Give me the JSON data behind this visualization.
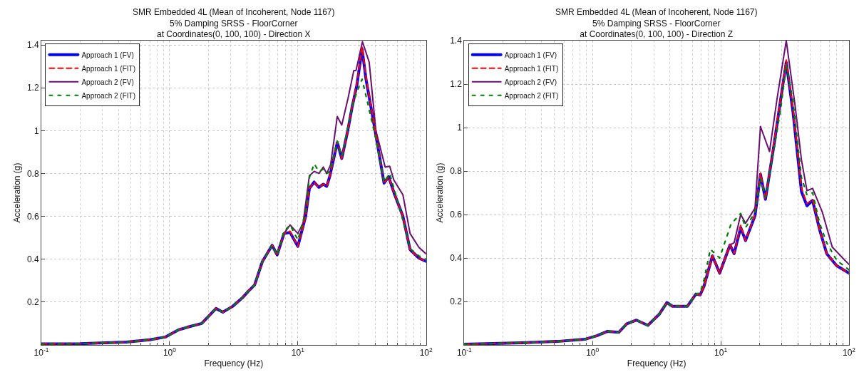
{
  "chart_data": [
    {
      "type": "line",
      "title": "SMR Embedded 4L (Mean of Incoherent, Node 1167)\n5% Damping SRSS - FloorCorner\nat Coordinates(0, 100, 100) - Direction X",
      "xlabel": "Frequency (Hz)",
      "ylabel": "Acceleration (g)",
      "log": "x",
      "grid": true,
      "legend": "top left",
      "xlim": [
        0.1,
        100
      ],
      "xticks": [
        {
          "value": 0.1,
          "label": "10$^{-1}$"
        },
        {
          "value": 1,
          "label": "10$^{0}$"
        },
        {
          "value": 10,
          "label": "10$^{1}$"
        },
        {
          "value": 100,
          "label": "10$^{2}$"
        }
      ],
      "ylim": [
        0,
        1.42
      ],
      "yticks": [
        0.2,
        0.4,
        0.6,
        0.8,
        1,
        1.2,
        1.4
      ],
      "series": [
        {
          "name": "Approach 1 (FV)",
          "color": "#0000ff",
          "line_style": "solid",
          "x": [
            0.1,
            0.2,
            0.46,
            0.7,
            0.93,
            1.17,
            1.38,
            1.78,
            2.3,
            2.6,
            3.1,
            3.7,
            4.1,
            4.6,
            5.3,
            6.3,
            6.9,
            7.8,
            8.7,
            10,
            11.5,
            12.3,
            13.4,
            14.6,
            15.8,
            16.8,
            17.8,
            20.3,
            22,
            24.5,
            26.5,
            28.8,
            31.7,
            34,
            40.6,
            47,
            51,
            57,
            66,
            75,
            88,
            100
          ],
          "values": [
            0.005,
            0.006,
            0.013,
            0.024,
            0.037,
            0.07,
            0.083,
            0.1,
            0.17,
            0.153,
            0.18,
            0.22,
            0.25,
            0.28,
            0.39,
            0.465,
            0.42,
            0.52,
            0.525,
            0.46,
            0.6,
            0.73,
            0.76,
            0.735,
            0.75,
            0.74,
            0.79,
            0.945,
            0.87,
            1.0,
            1.11,
            1.21,
            1.38,
            1.24,
            0.98,
            0.755,
            0.785,
            0.7,
            0.6,
            0.445,
            0.405,
            0.39
          ]
        },
        {
          "name": "Approach 1 (FIT)",
          "color": "#ff0000",
          "line_style": "dashed",
          "x": [
            0.1,
            0.2,
            0.46,
            0.7,
            0.93,
            1.17,
            1.38,
            1.78,
            2.3,
            2.6,
            3.1,
            3.7,
            4.1,
            4.6,
            5.3,
            6.3,
            6.9,
            7.8,
            8.7,
            10,
            11.5,
            12.3,
            13.4,
            14.6,
            15.8,
            16.8,
            17.8,
            20.3,
            22,
            24.5,
            26.5,
            28.8,
            31.7,
            34,
            40.6,
            47,
            51,
            57,
            66,
            75,
            88,
            100
          ],
          "values": [
            0.005,
            0.006,
            0.013,
            0.024,
            0.037,
            0.07,
            0.083,
            0.1,
            0.17,
            0.153,
            0.18,
            0.22,
            0.25,
            0.28,
            0.39,
            0.465,
            0.42,
            0.52,
            0.53,
            0.46,
            0.6,
            0.73,
            0.76,
            0.735,
            0.75,
            0.74,
            0.79,
            0.95,
            0.87,
            1.0,
            1.11,
            1.22,
            1.39,
            1.25,
            0.98,
            0.755,
            0.785,
            0.7,
            0.6,
            0.445,
            0.405,
            0.39
          ]
        },
        {
          "name": "Approach 2 (FV)",
          "color": "#6a0f70",
          "line_style": "solid",
          "x": [
            0.1,
            0.2,
            0.46,
            0.7,
            0.93,
            1.17,
            1.38,
            1.78,
            2.3,
            2.6,
            3.1,
            3.7,
            4.1,
            4.6,
            5.3,
            6.3,
            6.9,
            7.8,
            8.7,
            10,
            11,
            12.3,
            13.4,
            14.6,
            15.8,
            16.8,
            18,
            20.3,
            22,
            24.6,
            27.3,
            28.4,
            31.9,
            36,
            40.6,
            48,
            52,
            56,
            66,
            75,
            88,
            100
          ],
          "values": [
            0.005,
            0.006,
            0.013,
            0.024,
            0.037,
            0.07,
            0.083,
            0.1,
            0.17,
            0.153,
            0.18,
            0.22,
            0.25,
            0.28,
            0.39,
            0.465,
            0.42,
            0.52,
            0.56,
            0.52,
            0.57,
            0.79,
            0.81,
            0.8,
            0.83,
            0.8,
            0.84,
            1.066,
            1.026,
            1.15,
            1.28,
            1.28,
            1.415,
            1.32,
            1.0,
            0.83,
            0.834,
            0.77,
            0.7,
            0.52,
            0.455,
            0.425
          ]
        },
        {
          "name": "Approach 2 (FIT)",
          "color": "#008000",
          "line_style": "dashed",
          "x": [
            0.1,
            0.2,
            0.46,
            0.7,
            0.93,
            1.17,
            1.38,
            1.78,
            2.3,
            2.6,
            3.1,
            3.7,
            4.1,
            4.6,
            5.3,
            6.3,
            6.9,
            7.8,
            8.7,
            10,
            11.5,
            12.3,
            13.4,
            14.6,
            15.8,
            16.8,
            17.8,
            20.3,
            22,
            26.5,
            28.8,
            31.7,
            35,
            40.6,
            47,
            52,
            60,
            66,
            75,
            88,
            100
          ],
          "values": [
            0.005,
            0.006,
            0.013,
            0.024,
            0.037,
            0.07,
            0.083,
            0.1,
            0.17,
            0.153,
            0.18,
            0.22,
            0.25,
            0.28,
            0.39,
            0.465,
            0.42,
            0.53,
            0.56,
            0.49,
            0.62,
            0.78,
            0.845,
            0.81,
            0.82,
            0.8,
            0.81,
            0.95,
            0.88,
            1.11,
            1.18,
            1.24,
            1.13,
            0.96,
            0.76,
            0.8,
            0.67,
            0.58,
            0.45,
            0.415,
            0.4
          ]
        }
      ]
    },
    {
      "type": "line",
      "title": "SMR Embedded 4L (Mean of Incoherent, Node 1167)\n5% Damping SRSS - FloorCorner\nat Coordinates(0, 100, 100) - Direction Z",
      "xlabel": "Frequency (Hz)",
      "ylabel": "Acceleration (g)",
      "log": "x",
      "grid": true,
      "legend": "top left",
      "xlim": [
        0.1,
        100
      ],
      "xticks": [
        {
          "value": 0.1,
          "label": "10$^{-1}$"
        },
        {
          "value": 1,
          "label": "10$^{0}$"
        },
        {
          "value": 10,
          "label": "10$^{1}$"
        },
        {
          "value": 100,
          "label": "10$^{2}$"
        }
      ],
      "ylim": [
        0,
        1.4
      ],
      "yticks": [
        0.2,
        0.4,
        0.6,
        0.8,
        1,
        1.2,
        1.4
      ],
      "series": [
        {
          "name": "Approach 1 (FV)",
          "color": "#0000ff",
          "line_style": "solid",
          "x": [
            0.1,
            0.28,
            0.53,
            0.87,
            1.08,
            1.3,
            1.6,
            1.85,
            2.2,
            2.7,
            3.3,
            3.8,
            4.2,
            5.5,
            6.4,
            6.9,
            7.4,
            8.6,
            9.8,
            11.8,
            12.7,
            14.3,
            15.6,
            18.5,
            20.4,
            22.3,
            26,
            29.4,
            32.4,
            36.6,
            42.6,
            47,
            52,
            59,
            67,
            80,
            100
          ],
          "values": [
            0.003,
            0.01,
            0.016,
            0.026,
            0.042,
            0.062,
            0.058,
            0.097,
            0.114,
            0.09,
            0.14,
            0.195,
            0.178,
            0.178,
            0.234,
            0.23,
            0.27,
            0.41,
            0.33,
            0.46,
            0.42,
            0.54,
            0.48,
            0.595,
            0.785,
            0.67,
            0.92,
            1.135,
            1.3,
            1.07,
            0.705,
            0.64,
            0.665,
            0.53,
            0.42,
            0.365,
            0.33
          ]
        },
        {
          "name": "Approach 1 (FIT)",
          "color": "#ff0000",
          "line_style": "dashed",
          "x": [
            0.1,
            0.28,
            0.53,
            0.87,
            1.08,
            1.3,
            1.6,
            1.85,
            2.2,
            2.7,
            3.3,
            3.8,
            4.2,
            5.5,
            6.4,
            6.9,
            7.4,
            8.6,
            9.8,
            11.8,
            12.7,
            14.3,
            15.6,
            18.5,
            20.4,
            22.3,
            26,
            29.4,
            32.4,
            36.6,
            42.6,
            47,
            52,
            59,
            67,
            80,
            100
          ],
          "values": [
            0.003,
            0.01,
            0.016,
            0.026,
            0.042,
            0.062,
            0.058,
            0.097,
            0.114,
            0.09,
            0.14,
            0.195,
            0.178,
            0.178,
            0.234,
            0.23,
            0.27,
            0.41,
            0.33,
            0.46,
            0.42,
            0.55,
            0.48,
            0.6,
            0.79,
            0.67,
            0.93,
            1.14,
            1.31,
            1.08,
            0.72,
            0.65,
            0.67,
            0.53,
            0.42,
            0.365,
            0.33
          ]
        },
        {
          "name": "Approach 2 (FV)",
          "color": "#6a0f70",
          "line_style": "solid",
          "x": [
            0.1,
            0.28,
            0.53,
            0.87,
            1.08,
            1.3,
            1.6,
            1.85,
            2.2,
            2.7,
            3.3,
            3.8,
            4.2,
            5.5,
            6.4,
            6.9,
            7.4,
            8.6,
            9.8,
            11.8,
            12.7,
            14.3,
            15.6,
            18.5,
            20.4,
            24,
            27.5,
            32.4,
            38,
            42.6,
            47,
            52,
            62,
            74,
            100
          ],
          "values": [
            0.003,
            0.01,
            0.016,
            0.026,
            0.042,
            0.062,
            0.058,
            0.097,
            0.114,
            0.09,
            0.14,
            0.195,
            0.178,
            0.178,
            0.234,
            0.23,
            0.27,
            0.41,
            0.33,
            0.46,
            0.47,
            0.6,
            0.56,
            0.63,
            1.005,
            0.89,
            1.135,
            1.4,
            1.1,
            0.85,
            0.71,
            0.72,
            0.61,
            0.45,
            0.37
          ]
        },
        {
          "name": "Approach 2 (FIT)",
          "color": "#008000",
          "line_style": "dashed",
          "x": [
            0.1,
            0.28,
            0.53,
            0.87,
            1.08,
            1.3,
            1.6,
            1.85,
            2.2,
            2.7,
            3.3,
            3.8,
            4.2,
            5.5,
            6.4,
            6.9,
            7.4,
            8.3,
            9.8,
            12,
            14.3,
            15.6,
            18.5,
            20.4,
            22.3,
            26,
            29.4,
            32.4,
            36.6,
            42.6,
            47,
            52,
            59,
            67,
            80,
            100
          ],
          "values": [
            0.003,
            0.01,
            0.016,
            0.026,
            0.042,
            0.062,
            0.058,
            0.097,
            0.114,
            0.09,
            0.14,
            0.195,
            0.178,
            0.178,
            0.234,
            0.24,
            0.3,
            0.44,
            0.4,
            0.555,
            0.605,
            0.54,
            0.61,
            0.765,
            0.68,
            0.9,
            1.09,
            1.29,
            1.12,
            0.77,
            0.69,
            0.7,
            0.56,
            0.47,
            0.39,
            0.345
          ]
        }
      ]
    }
  ]
}
